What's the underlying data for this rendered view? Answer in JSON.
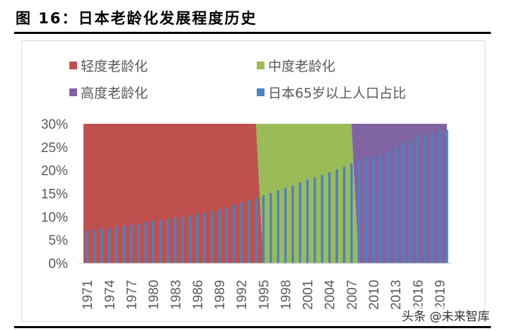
{
  "title": "图 16：日本老龄化发展程度历史",
  "watermark": "头条 @未来智库",
  "chart_data": {
    "type": "bar+area",
    "title": "",
    "xlabel": "",
    "ylabel": "",
    "ylim": [
      0,
      30
    ],
    "yticks": [
      "0%",
      "5%",
      "10%",
      "15%",
      "20%",
      "25%",
      "30%"
    ],
    "grid": false,
    "legend_position": "top",
    "x": [
      1971,
      1972,
      1973,
      1974,
      1975,
      1976,
      1977,
      1978,
      1979,
      1980,
      1981,
      1982,
      1983,
      1984,
      1985,
      1986,
      1987,
      1988,
      1989,
      1990,
      1991,
      1992,
      1993,
      1994,
      1995,
      1996,
      1997,
      1998,
      1999,
      2000,
      2001,
      2002,
      2003,
      2004,
      2005,
      2006,
      2007,
      2008,
      2009,
      2010,
      2011,
      2012,
      2013,
      2014,
      2015,
      2016,
      2017,
      2018,
      2019,
      2020
    ],
    "xtick_labels": [
      "1971",
      "1974",
      "1977",
      "1980",
      "1983",
      "1986",
      "1989",
      "1992",
      "1995",
      "1998",
      "2001",
      "2004",
      "2007",
      "2010",
      "2013",
      "2016",
      "2019"
    ],
    "series": [
      {
        "name": "轻度老龄化",
        "type": "area",
        "color": "#c0504d",
        "range": [
          1971,
          1994
        ],
        "value": 30
      },
      {
        "name": "中度老龄化",
        "type": "area",
        "color": "#9bbb59",
        "range": [
          1995,
          2007
        ],
        "value": 30
      },
      {
        "name": "高度老龄化",
        "type": "area",
        "color": "#8064a2",
        "range": [
          2008,
          2020
        ],
        "value": 30
      },
      {
        "name": "日本65岁以上人口占比",
        "type": "bar",
        "color": "#4f81bd",
        "values": [
          7.1,
          7.2,
          7.5,
          7.5,
          7.9,
          8.1,
          8.2,
          8.6,
          8.9,
          9.1,
          9.3,
          9.5,
          9.8,
          10.0,
          10.3,
          10.6,
          10.9,
          11.2,
          11.6,
          12.1,
          12.6,
          13.1,
          13.5,
          14.1,
          14.6,
          15.1,
          15.7,
          16.2,
          16.7,
          17.4,
          18.0,
          18.5,
          19.0,
          19.5,
          20.2,
          20.8,
          21.5,
          22.1,
          22.7,
          23.0,
          23.3,
          24.1,
          25.1,
          26.0,
          26.6,
          27.3,
          27.7,
          28.1,
          28.4,
          28.7
        ]
      }
    ]
  }
}
